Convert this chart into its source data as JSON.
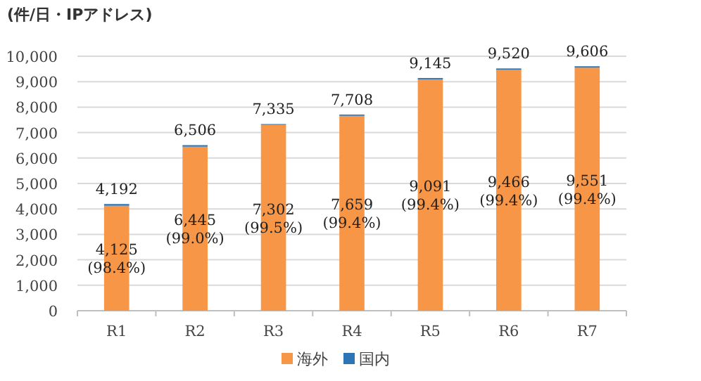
{
  "chart_data": {
    "type": "bar",
    "stacked": true,
    "ylabel": "(件/日・IPアドレス)",
    "categories": [
      "R1",
      "R2",
      "R3",
      "R4",
      "R5",
      "R6",
      "R7"
    ],
    "series": [
      {
        "name": "海外",
        "color": "#f79646",
        "values": [
          4125,
          6445,
          7302,
          7659,
          9091,
          9466,
          9551
        ],
        "value_labels": [
          "4,125\n(98.4%)",
          "6,445\n(99.0%)",
          "7,302\n(99.5%)",
          "7,659\n(99.4%)",
          "9,091\n(99.4%)",
          "9,466\n(99.4%)",
          "9,551\n(99.4%)"
        ]
      },
      {
        "name": "国内",
        "color": "#2e75b6",
        "values": [
          67,
          61,
          33,
          49,
          54,
          54,
          55
        ]
      }
    ],
    "totals": [
      "4,192",
      "6,506",
      "7,335",
      "7,708",
      "9,145",
      "9,520",
      "9,606"
    ],
    "ylim": [
      0,
      10000
    ],
    "yticks": [
      {
        "value": 0,
        "label": "0"
      },
      {
        "value": 1000,
        "label": "1,000"
      },
      {
        "value": 2000,
        "label": "2,000"
      },
      {
        "value": 3000,
        "label": "3,000"
      },
      {
        "value": 4000,
        "label": "4,000"
      },
      {
        "value": 5000,
        "label": "5,000"
      },
      {
        "value": 6000,
        "label": "6,000"
      },
      {
        "value": 7000,
        "label": "7,000"
      },
      {
        "value": 8000,
        "label": "8,000"
      },
      {
        "value": 9000,
        "label": "9,000"
      },
      {
        "value": 10000,
        "label": "10,000"
      }
    ],
    "grid": "y",
    "legend": "bottom"
  }
}
